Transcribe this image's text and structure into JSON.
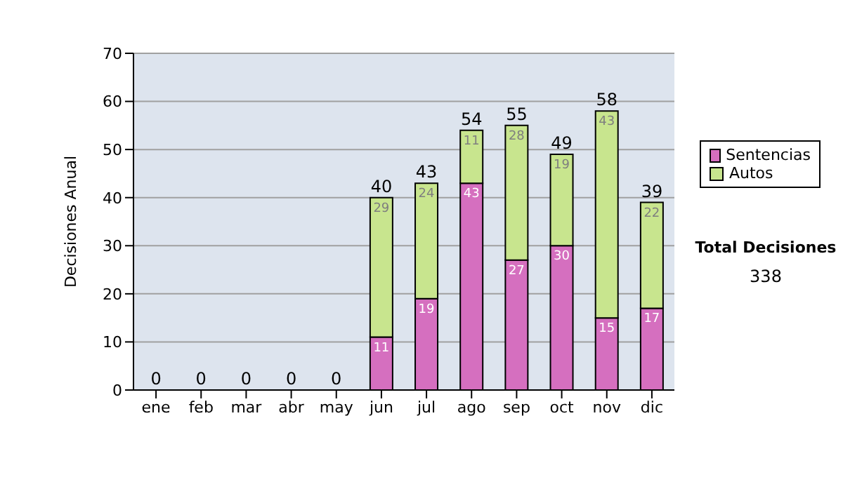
{
  "chart_data": {
    "type": "bar",
    "ylabel": "Decisiones Anual",
    "categories": [
      "ene",
      "feb",
      "mar",
      "abr",
      "may",
      "jun",
      "jul",
      "ago",
      "sep",
      "oct",
      "nov",
      "dic"
    ],
    "series": [
      {
        "name": "Sentencias",
        "color": "#d56fbf",
        "values": [
          0,
          0,
          0,
          0,
          0,
          11,
          19,
          43,
          27,
          30,
          15,
          17
        ],
        "value_labels": [
          null,
          null,
          null,
          null,
          null,
          "11",
          "19",
          "43",
          "27",
          "30",
          "15",
          "17"
        ]
      },
      {
        "name": "Autos",
        "color": "#c8e58e",
        "values": [
          0,
          0,
          0,
          0,
          0,
          29,
          24,
          11,
          28,
          19,
          43,
          22
        ],
        "value_labels": [
          null,
          null,
          null,
          null,
          null,
          "29",
          "24",
          "11",
          "28",
          "19",
          "43",
          "22"
        ]
      }
    ],
    "stacked": true,
    "totals": [
      "0",
      "0",
      "0",
      "0",
      "0",
      "40",
      "43",
      "54",
      "55",
      "49",
      "58",
      "39"
    ],
    "ylim": [
      0,
      70
    ],
    "yticks": [
      0,
      10,
      20,
      30,
      40,
      50,
      60,
      70
    ],
    "grid": "y",
    "legend": "right",
    "annotations": [
      "Total Decisiones",
      "338"
    ]
  }
}
